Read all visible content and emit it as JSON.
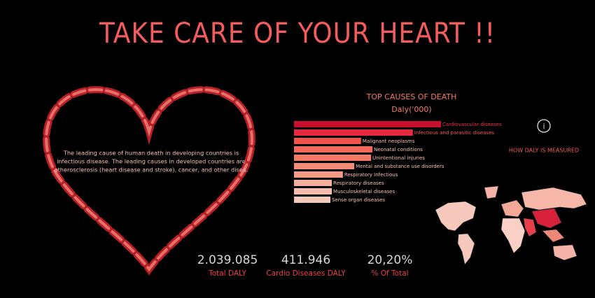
{
  "header": {
    "title": "TAKE CARE OF YOUR HEART !!"
  },
  "heart_text": [
    "The leading cause of human death in developing countries is",
    "infectious disease. The leading causes in developed countries are",
    "atherosclerosis (heart disease and stroke), cancer, and other disea."
  ],
  "chart_data": {
    "type": "hbar",
    "title": "TOP CAUSES OF DEATH",
    "subtitle": "Daly('000)",
    "categories": [
      "Cardiovascular diseases",
      "Infectious and parasitic diseases",
      "Malignant neoplasms",
      "Neonatal conditions",
      "Unintentional injuries",
      "Mental and substance use disorders",
      "Respiratory Infectious",
      "Respiratory diseases",
      "Musculoskeletal diseases",
      "Sense organ diseases"
    ],
    "values": [
      411946,
      333000,
      188000,
      220000,
      216000,
      169000,
      137000,
      106000,
      106000,
      102000
    ],
    "colors": [
      "#c8102e",
      "#e8283f",
      "#f0524c",
      "#f4685a",
      "#f47a66",
      "#f48c78",
      "#f49c88",
      "#f4ae9c",
      "#f4bcaa",
      "#f4c8b8"
    ],
    "label_colors": [
      "#f03050",
      "#f05a5a",
      "#f7c2b8",
      "#f7c2b8",
      "#f7c2b8",
      "#f7c2b8",
      "#f7c2b8",
      "#f7c2b8",
      "#f7c2b8",
      "#f7c2b8"
    ]
  },
  "side": {
    "info": "i",
    "link": "HOW DALY IS MEASURED"
  },
  "kpis": [
    {
      "value": "2.039.085",
      "label": "Total DALY"
    },
    {
      "value": "411.946",
      "label": "Cardio Diseases DALY"
    },
    {
      "value": "20,20%",
      "label": "% Of Total"
    }
  ]
}
